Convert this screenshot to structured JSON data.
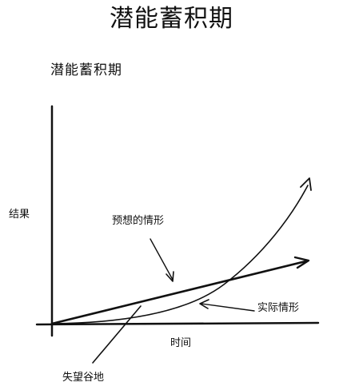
{
  "header": {
    "title": "潜能蓄积期"
  },
  "diagram": {
    "title": "潜能蓄积期",
    "y_axis_label": "结果",
    "x_axis_label": "时间",
    "expected_label": "预想的情形",
    "actual_label": "实际情形",
    "valley_label": "失望谷地"
  }
}
